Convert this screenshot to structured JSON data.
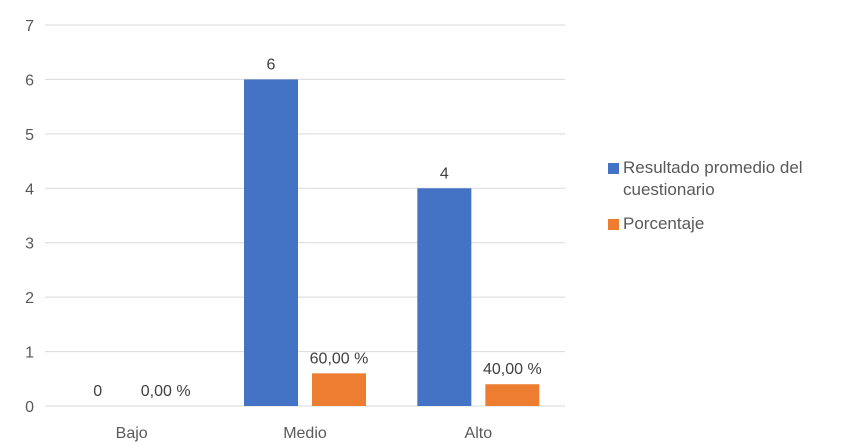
{
  "chart_data": {
    "type": "bar",
    "categories": [
      "Bajo",
      "Medio",
      "Alto"
    ],
    "series": [
      {
        "name": "Resultado promedio del cuestionario",
        "values": [
          0,
          6,
          4
        ],
        "labels": [
          "0",
          "6",
          "4"
        ],
        "color": "#4472C4"
      },
      {
        "name": "Porcentaje",
        "values": [
          0,
          0.6,
          0.4
        ],
        "labels": [
          "0,00 %",
          "60,00 %",
          "40,00 %"
        ],
        "color": "#ED7D31"
      }
    ],
    "yticks": [
      "0",
      "1",
      "2",
      "3",
      "4",
      "5",
      "6",
      "7"
    ],
    "ylim": [
      0,
      7
    ],
    "grid": true,
    "legend_position": "right"
  }
}
